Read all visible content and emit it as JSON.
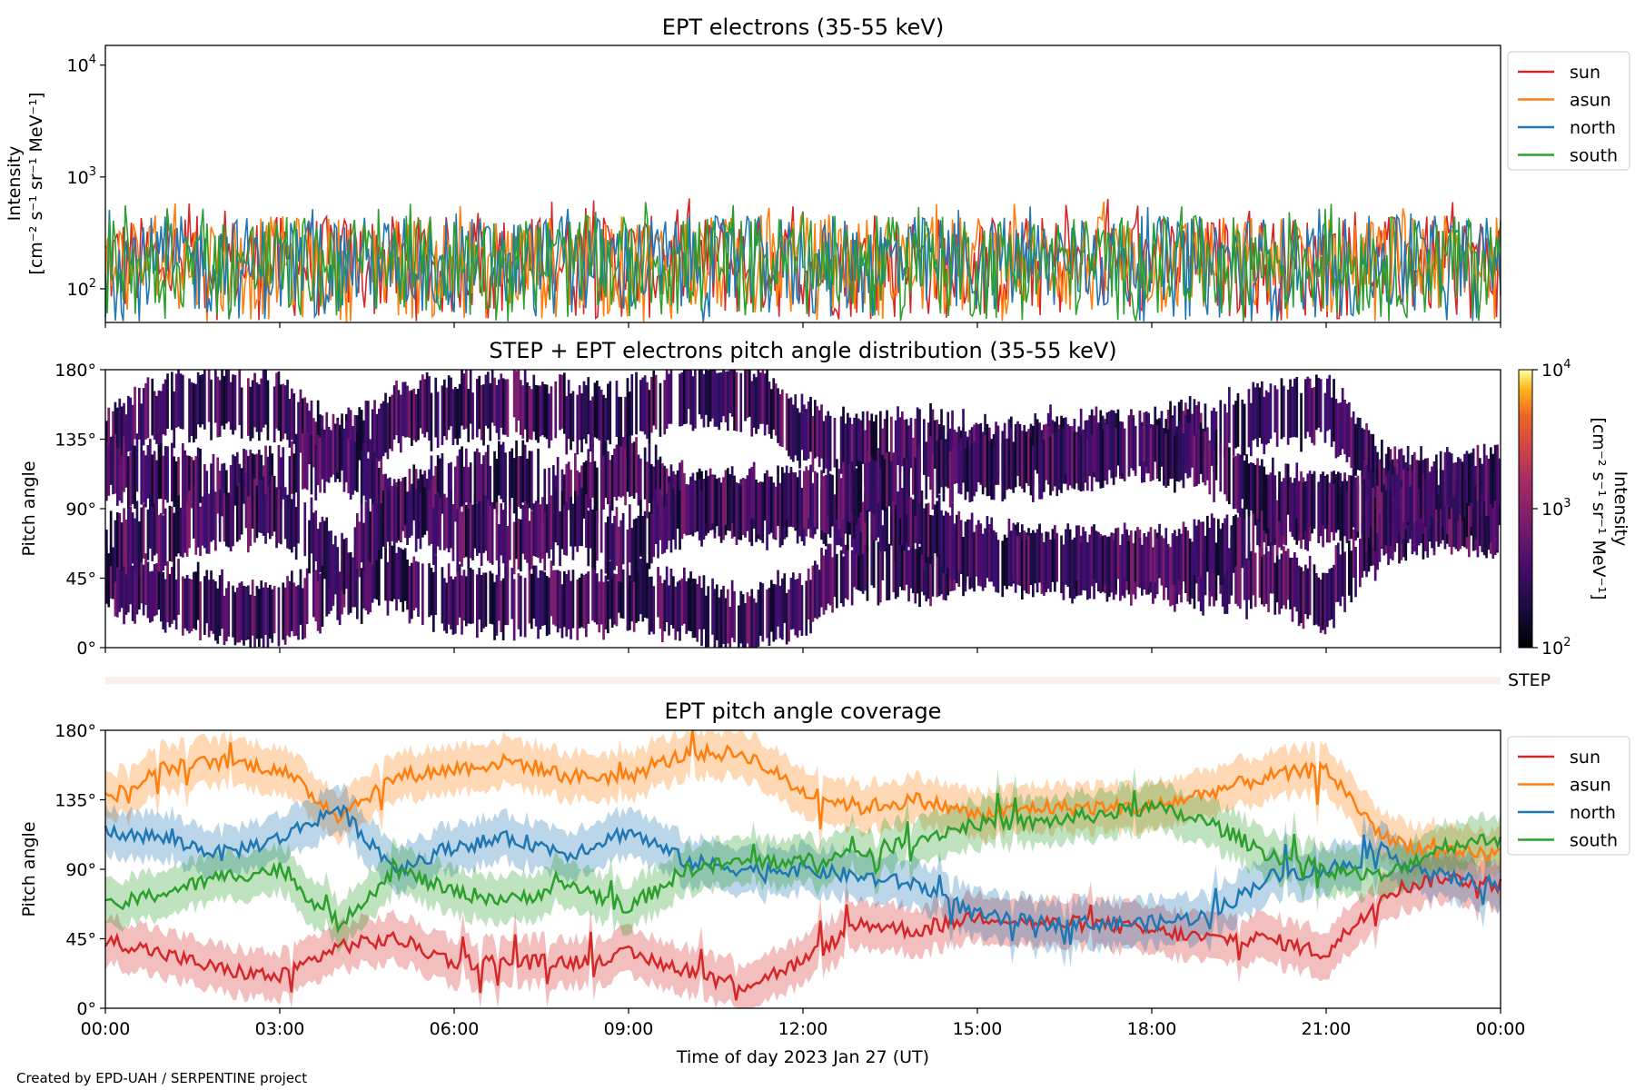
{
  "footer": "Created by EPD-UAH / SERPENTINE project",
  "colors": {
    "sun": "#d62728",
    "asun": "#ff7f0e",
    "north": "#1f77b4",
    "south": "#2ca02c",
    "step_bar": "#fdf0ea"
  },
  "chart_data": [
    {
      "type": "line",
      "title": "EPT electrons (35-55 keV)",
      "ylabel_line1": "Intensity",
      "ylabel_line2": "[cm⁻² s⁻¹ sr⁻¹ MeV⁻¹]",
      "y_scale": "log",
      "ylim": [
        50,
        15000
      ],
      "yticks": [
        {
          "value": 100,
          "base": "10",
          "exp": "2"
        },
        {
          "value": 1000,
          "base": "10",
          "exp": "3"
        },
        {
          "value": 10000,
          "base": "10",
          "exp": "4"
        }
      ],
      "xlim_hours": [
        0,
        24
      ],
      "legend_position": "upper right, outside plot",
      "series": [
        {
          "name": "sun",
          "color": "#d62728",
          "typical_range": [
            50,
            450
          ],
          "peak": 650
        },
        {
          "name": "asun",
          "color": "#ff7f0e",
          "typical_range": [
            50,
            450
          ],
          "peak": 620
        },
        {
          "name": "north",
          "color": "#1f77b4",
          "typical_range": [
            50,
            450
          ],
          "peak": 550
        },
        {
          "name": "south",
          "color": "#2ca02c",
          "typical_range": [
            50,
            450
          ],
          "peak": 600
        }
      ]
    },
    {
      "type": "heatmap",
      "title": "STEP + EPT electrons pitch angle distribution (35-55 keV)",
      "ylabel": "Pitch angle",
      "ylim": [
        0,
        180
      ],
      "yticks": [
        "0°",
        "45°",
        "90°",
        "135°",
        "180°"
      ],
      "xlim_hours": [
        0,
        24
      ],
      "colorbar": {
        "label_line1": "Intensity",
        "label_line2": "[cm⁻² s⁻¹ sr⁻¹ MeV⁻¹]",
        "scale": "log",
        "range": [
          100,
          10000
        ],
        "colormap": "inferno",
        "ticks": [
          {
            "value": 100,
            "base": "10",
            "exp": "2"
          },
          {
            "value": 1000,
            "base": "10",
            "exp": "3"
          },
          {
            "value": 10000,
            "base": "10",
            "exp": "4"
          }
        ]
      }
    },
    {
      "type": "bar",
      "label": "STEP",
      "xlim_hours": [
        0,
        24
      ]
    },
    {
      "type": "line",
      "title": "EPT pitch angle coverage",
      "ylabel": "Pitch angle",
      "ylim": [
        0,
        180
      ],
      "yticks": [
        "0°",
        "45°",
        "90°",
        "135°",
        "180°"
      ],
      "xlabel": "Time of day 2023 Jan 27 (UT)",
      "xticks": [
        "00:00",
        "03:00",
        "06:00",
        "09:00",
        "12:00",
        "15:00",
        "18:00",
        "21:00",
        "00:00"
      ],
      "legend_position": "upper right, outside plot",
      "shaded_band_halfwidth_deg": 15,
      "x_hours": [
        0,
        1,
        2,
        3,
        4,
        5,
        6,
        7,
        8,
        9,
        10,
        11,
        12,
        13,
        14,
        15,
        16,
        17,
        18,
        19,
        20,
        21,
        22,
        23,
        24
      ],
      "series": [
        {
          "name": "sun",
          "color": "#d62728",
          "values": [
            45,
            35,
            25,
            20,
            40,
            45,
            30,
            30,
            30,
            35,
            25,
            15,
            30,
            55,
            50,
            60,
            55,
            55,
            50,
            45,
            45,
            35,
            75,
            85,
            80
          ]
        },
        {
          "name": "asun",
          "color": "#ff7f0e",
          "values": [
            135,
            155,
            160,
            155,
            125,
            150,
            155,
            160,
            150,
            150,
            165,
            165,
            140,
            130,
            135,
            125,
            130,
            130,
            130,
            140,
            150,
            155,
            110,
            100,
            100
          ]
        },
        {
          "name": "north",
          "color": "#1f77b4",
          "values": [
            115,
            110,
            100,
            110,
            130,
            90,
            105,
            110,
            100,
            115,
            95,
            90,
            90,
            85,
            80,
            60,
            55,
            55,
            55,
            60,
            85,
            90,
            100,
            85,
            80
          ]
        },
        {
          "name": "south",
          "color": "#2ca02c",
          "values": [
            65,
            75,
            85,
            90,
            55,
            90,
            75,
            70,
            80,
            65,
            90,
            95,
            95,
            100,
            110,
            120,
            120,
            125,
            130,
            120,
            100,
            90,
            85,
            105,
            110
          ]
        }
      ]
    }
  ]
}
